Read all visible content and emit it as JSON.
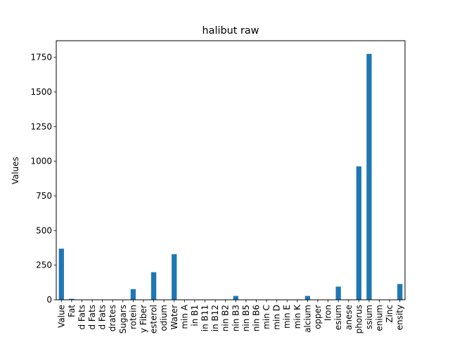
{
  "chart_data": {
    "type": "bar",
    "title": "halibut raw",
    "xlabel": "",
    "ylabel": "Values",
    "ylim": [
      0,
      1870
    ],
    "yticks": [
      0,
      250,
      500,
      750,
      1000,
      1250,
      1500,
      1750
    ],
    "grid": false,
    "legend": "none",
    "bar_color": "#1f77b4",
    "categories": [
      "Value",
      "Fat",
      "d Fats",
      "d Fats",
      "d Fats",
      "drates",
      "Sugars",
      "rotein",
      "y Fiber",
      "esterol",
      "odium",
      "Water",
      "min A",
      "in B1",
      "in B11",
      "in B12",
      "nin B2",
      "nin B3",
      "nin B5",
      "nin B6",
      "min C",
      "min D",
      "min E",
      "min K",
      "alcium",
      "opper",
      "Iron",
      "esium",
      "anese",
      "phorus",
      "ssium",
      "enium",
      "Zinc",
      "ensity"
    ],
    "values": [
      369,
      7,
      2,
      2,
      1,
      0,
      0,
      77,
      0,
      199,
      1,
      329,
      0,
      0,
      0,
      0,
      1,
      28,
      0,
      0,
      0,
      0,
      0,
      0,
      28,
      0,
      1,
      95,
      0,
      963,
      1775,
      0,
      1,
      114
    ]
  }
}
